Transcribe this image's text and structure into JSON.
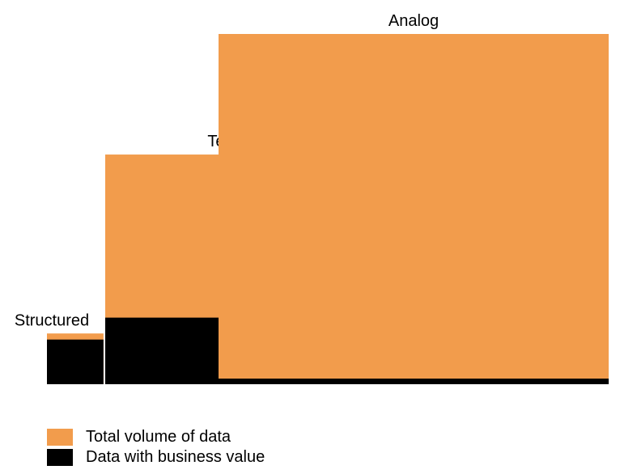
{
  "colors": {
    "total": "#F29C4C",
    "value": "#000000",
    "background": "#FFFFFF"
  },
  "blocks": [
    {
      "label": "Structured",
      "total_share": 0.021,
      "value_fraction": 0.88
    },
    {
      "label": "Textual",
      "total_share": 0.43,
      "value_fraction": 0.29
    },
    {
      "label": "Analog",
      "total_share": 1.0,
      "value_fraction": 0.016
    }
  ],
  "legend": [
    {
      "label": "Total volume of data",
      "color_key": "total"
    },
    {
      "label": "Data with business value",
      "color_key": "value"
    }
  ]
}
